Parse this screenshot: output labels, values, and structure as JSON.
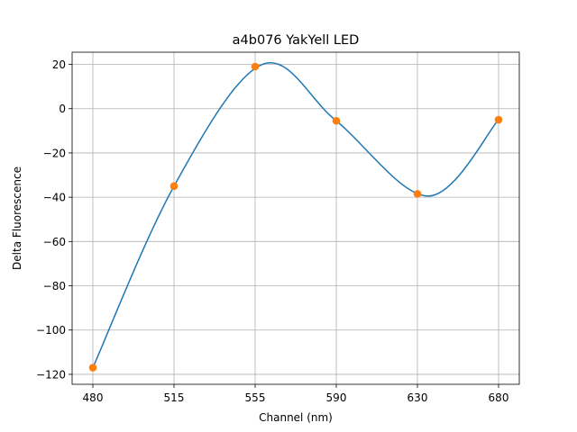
{
  "chart_data": {
    "type": "line",
    "title": "a4b076 YakYell LED",
    "xlabel": "Channel (nm)",
    "ylabel": "Delta Fluorescence",
    "x_tick_labels": [
      "480",
      "515",
      "555",
      "590",
      "630",
      "680"
    ],
    "y_ticks": [
      -120,
      -100,
      -80,
      -60,
      -40,
      -20,
      0,
      20
    ],
    "y_tick_labels": [
      "−120",
      "−100",
      "−80",
      "−60",
      "−40",
      "−20",
      "0",
      "20"
    ],
    "ylim": [
      -124.5,
      25.5
    ],
    "grid": true,
    "colors": {
      "curve": "#1f77b4",
      "points": "#ff7f0e",
      "grid": "#b0b0b0"
    },
    "series": [
      {
        "kind": "points",
        "x": [
          "480",
          "515",
          "555",
          "590",
          "630",
          "680"
        ],
        "y": [
          -117,
          -35,
          19,
          -5.5,
          -38.5,
          -5
        ]
      },
      {
        "kind": "smooth-curve",
        "x_start": "480",
        "x_end": "680",
        "peak": 20,
        "trough": -39.5
      }
    ]
  }
}
